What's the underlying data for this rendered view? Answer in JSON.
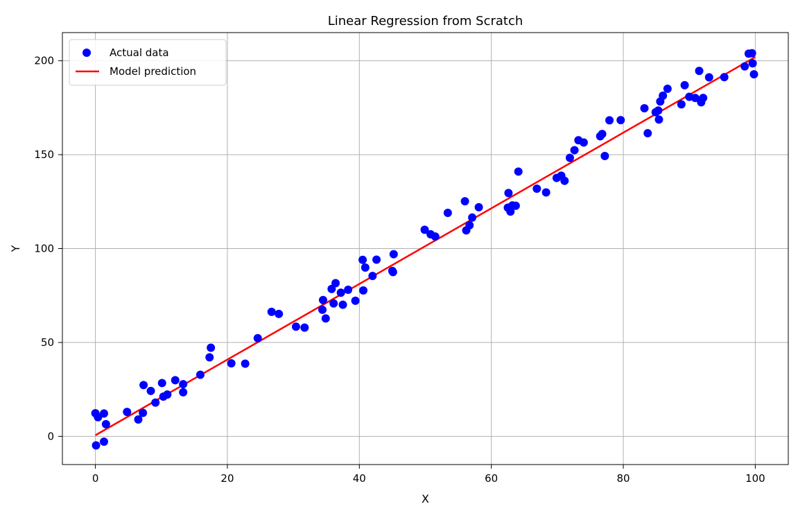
{
  "chart_data": {
    "type": "scatter",
    "title": "Linear Regression from Scratch",
    "xlabel": "X",
    "ylabel": "Y",
    "xlim": [
      -5,
      105
    ],
    "ylim": [
      -15,
      215
    ],
    "xticks": [
      0,
      20,
      40,
      60,
      80,
      100
    ],
    "yticks": [
      0,
      50,
      100,
      150,
      200
    ],
    "grid": true,
    "legend_position": "upper-left",
    "series": [
      {
        "name": "Actual data",
        "kind": "scatter",
        "color": "#0000ff",
        "points": [
          [
            0.0,
            12.3
          ],
          [
            0.1,
            -4.8
          ],
          [
            0.4,
            10.2
          ],
          [
            1.3,
            12.2
          ],
          [
            1.3,
            -2.8
          ],
          [
            1.6,
            6.5
          ],
          [
            4.8,
            13.0
          ],
          [
            6.5,
            9.0
          ],
          [
            7.2,
            12.5
          ],
          [
            7.3,
            27.3
          ],
          [
            8.4,
            24.2
          ],
          [
            9.1,
            18.0
          ],
          [
            10.1,
            28.4
          ],
          [
            10.3,
            21.2
          ],
          [
            10.9,
            22.3
          ],
          [
            12.1,
            29.9
          ],
          [
            13.3,
            27.8
          ],
          [
            13.3,
            23.5
          ],
          [
            15.9,
            32.8
          ],
          [
            17.3,
            42.1
          ],
          [
            17.5,
            47.2
          ],
          [
            20.6,
            38.9
          ],
          [
            22.7,
            38.7
          ],
          [
            24.6,
            52.3
          ],
          [
            26.7,
            66.3
          ],
          [
            27.8,
            65.2
          ],
          [
            30.4,
            58.4
          ],
          [
            31.7,
            57.9
          ],
          [
            34.4,
            67.4
          ],
          [
            34.5,
            72.6
          ],
          [
            34.9,
            62.8
          ],
          [
            35.8,
            78.5
          ],
          [
            36.1,
            70.8
          ],
          [
            36.4,
            81.6
          ],
          [
            37.2,
            76.5
          ],
          [
            37.5,
            70.1
          ],
          [
            38.3,
            78.1
          ],
          [
            39.4,
            72.2
          ],
          [
            40.5,
            94.0
          ],
          [
            40.6,
            77.7
          ],
          [
            40.9,
            89.9
          ],
          [
            42.0,
            85.4
          ],
          [
            42.6,
            94.1
          ],
          [
            45.0,
            88.1
          ],
          [
            45.1,
            87.5
          ],
          [
            45.2,
            97.0
          ],
          [
            49.9,
            110.0
          ],
          [
            50.8,
            107.6
          ],
          [
            51.5,
            106.4
          ],
          [
            53.4,
            119.0
          ],
          [
            56.0,
            125.2
          ],
          [
            56.2,
            109.7
          ],
          [
            56.7,
            112.4
          ],
          [
            57.1,
            116.5
          ],
          [
            58.1,
            122.0
          ],
          [
            62.5,
            121.8
          ],
          [
            62.6,
            129.6
          ],
          [
            62.9,
            119.7
          ],
          [
            63.2,
            123.0
          ],
          [
            63.7,
            122.8
          ],
          [
            64.1,
            141.0
          ],
          [
            66.9,
            131.9
          ],
          [
            68.3,
            129.9
          ],
          [
            69.9,
            137.6
          ],
          [
            70.6,
            138.8
          ],
          [
            71.1,
            136.1
          ],
          [
            71.9,
            148.3
          ],
          [
            72.6,
            152.4
          ],
          [
            73.2,
            157.7
          ],
          [
            74.0,
            156.5
          ],
          [
            76.5,
            159.8
          ],
          [
            76.8,
            161.0
          ],
          [
            77.2,
            149.3
          ],
          [
            77.9,
            168.3
          ],
          [
            79.6,
            168.4
          ],
          [
            83.2,
            174.7
          ],
          [
            83.7,
            161.4
          ],
          [
            84.9,
            172.6
          ],
          [
            85.3,
            173.5
          ],
          [
            85.4,
            168.7
          ],
          [
            85.6,
            178.3
          ],
          [
            86.0,
            181.4
          ],
          [
            86.7,
            185.1
          ],
          [
            88.8,
            176.8
          ],
          [
            89.3,
            187.0
          ],
          [
            90.0,
            180.8
          ],
          [
            90.9,
            180.2
          ],
          [
            91.5,
            194.6
          ],
          [
            91.8,
            177.9
          ],
          [
            92.1,
            180.2
          ],
          [
            93.0,
            191.2
          ],
          [
            95.3,
            191.3
          ],
          [
            98.4,
            197.0
          ],
          [
            99.0,
            203.8
          ],
          [
            99.5,
            204.0
          ],
          [
            99.6,
            198.6
          ],
          [
            99.8,
            192.8
          ]
        ]
      },
      {
        "name": "Model prediction",
        "kind": "line",
        "color": "#ff0000",
        "points": [
          [
            0,
            0.6
          ],
          [
            100,
            202.0
          ]
        ]
      }
    ]
  }
}
